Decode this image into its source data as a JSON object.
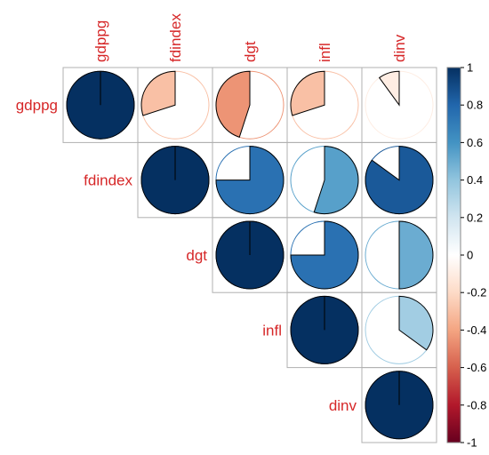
{
  "chart_data": {
    "type": "heatmap",
    "subtype": "correlation-pie-upper-triangle",
    "variables": [
      "gdppg",
      "fdindex",
      "dgt",
      "infl",
      "dinv"
    ],
    "matrix": [
      [
        1.0,
        -0.3,
        -0.45,
        -0.3,
        -0.1
      ],
      [
        null,
        1.0,
        0.75,
        0.55,
        0.85
      ],
      [
        null,
        null,
        1.0,
        0.75,
        0.5
      ],
      [
        null,
        null,
        null,
        1.0,
        0.35
      ],
      [
        null,
        null,
        null,
        null,
        1.0
      ]
    ],
    "colorbar": {
      "range": [
        -1,
        1
      ],
      "ticks": [
        "1",
        "0.8",
        "0.6",
        "0.4",
        "0.2",
        "0",
        "-0.2",
        "-0.4",
        "-0.6",
        "-0.8",
        "-1"
      ],
      "tick_values": [
        1,
        0.8,
        0.6,
        0.4,
        0.2,
        0,
        -0.2,
        -0.4,
        -0.6,
        -0.8,
        -1
      ],
      "colors": [
        "#67001F",
        "#B2182B",
        "#D6604D",
        "#F4A582",
        "#FDDBC7",
        "#FFFFFF",
        "#D1E5F0",
        "#92C5DE",
        "#4393C3",
        "#2166AC",
        "#053061"
      ]
    },
    "label_color": "#d62728",
    "title": "",
    "grid": true
  }
}
